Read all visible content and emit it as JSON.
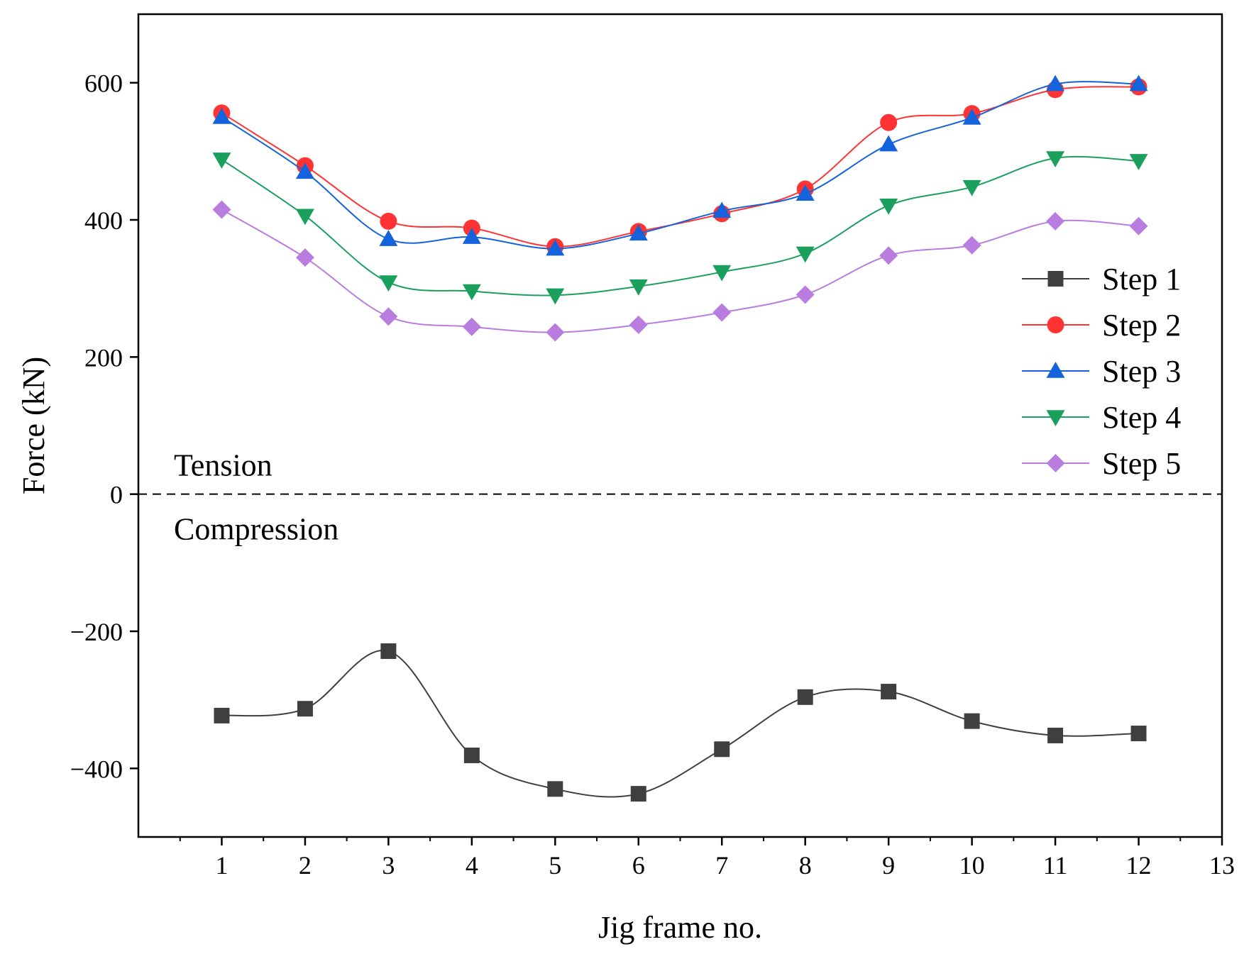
{
  "chart_data": {
    "type": "line",
    "title": "",
    "xlabel": "Jig frame no.",
    "ylabel": "Force (kN)",
    "xlim": [
      0,
      13
    ],
    "ylim": [
      -500,
      700
    ],
    "x_ticks": [
      1,
      2,
      3,
      4,
      5,
      6,
      7,
      8,
      9,
      10,
      11,
      12,
      13
    ],
    "y_ticks": [
      -400,
      -200,
      0,
      200,
      400,
      600
    ],
    "y_tick_labels": [
      "−400",
      "−200",
      "0",
      "200",
      "400",
      "600"
    ],
    "x": [
      1,
      2,
      3,
      4,
      5,
      6,
      7,
      8,
      9,
      10,
      11,
      12
    ],
    "series": [
      {
        "name": "Step 1",
        "color": "#3f3f3f",
        "marker": "square",
        "values": [
          -323,
          -313,
          -229,
          -381,
          -430,
          -437,
          -372,
          -296,
          -288,
          -331,
          -352,
          -349
        ]
      },
      {
        "name": "Step 2",
        "color": "#ff3333",
        "marker": "circle",
        "values": [
          556,
          479,
          398,
          388,
          361,
          383,
          409,
          445,
          542,
          555,
          590,
          594
        ]
      },
      {
        "name": "Step 3",
        "color": "#1463dc",
        "marker": "triangle-up",
        "values": [
          550,
          470,
          372,
          375,
          358,
          380,
          413,
          438,
          510,
          549,
          598,
          598
        ]
      },
      {
        "name": "Step 4",
        "color": "#1a9f5c",
        "marker": "triangle-down",
        "values": [
          488,
          406,
          309,
          296,
          290,
          303,
          324,
          351,
          421,
          448,
          490,
          486
        ]
      },
      {
        "name": "Step 5",
        "color": "#b97de0",
        "marker": "diamond",
        "values": [
          415,
          345,
          259,
          244,
          236,
          247,
          265,
          291,
          348,
          363,
          398,
          391
        ]
      }
    ],
    "reference_line": {
      "y": 0,
      "style": "dashed"
    },
    "annotations": [
      {
        "text": "Tension",
        "position": "above-reference-left"
      },
      {
        "text": "Compression",
        "position": "below-reference-left"
      }
    ],
    "legend_position": "right"
  }
}
